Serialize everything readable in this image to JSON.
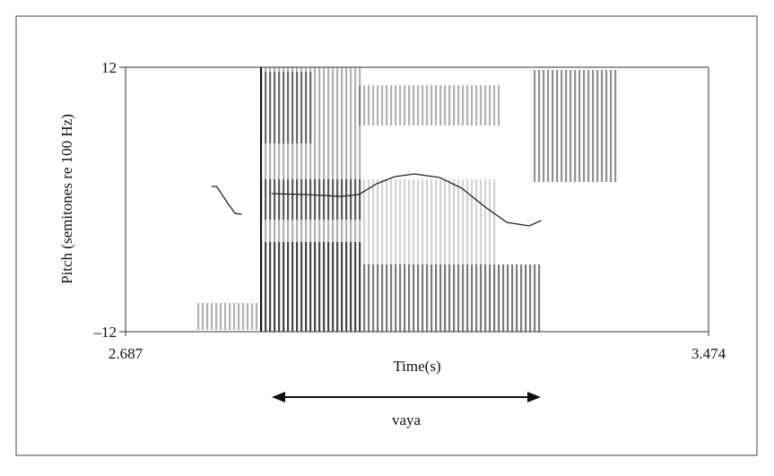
{
  "chart_data": {
    "type": "line",
    "x_label": "Time(s)",
    "y_label": "Pitch (semitones re 100 Hz)",
    "annotation": "vaya",
    "xlim": [
      2.687,
      3.474
    ],
    "xticks": [
      2.687,
      3.474
    ],
    "ylim": [
      -12,
      12
    ],
    "yticks": [
      {
        "value": -12,
        "label": "–12"
      },
      12
    ],
    "series": [
      {
        "color": "#222222",
        "x": [
          2.803,
          2.81,
          2.826,
          2.835,
          2.844,
          null,
          2.884,
          2.929,
          2.978,
          3.002,
          3.026,
          3.05,
          3.077,
          3.111,
          3.141,
          3.171,
          3.202,
          3.232,
          3.248
        ],
        "values": [
          1.18,
          1.18,
          -0.45,
          -1.26,
          -1.34,
          null,
          0.53,
          0.45,
          0.28,
          0.45,
          1.42,
          2.07,
          2.32,
          1.99,
          1.02,
          -0.61,
          -2.08,
          -2.4,
          -1.91
        ]
      }
    ]
  }
}
